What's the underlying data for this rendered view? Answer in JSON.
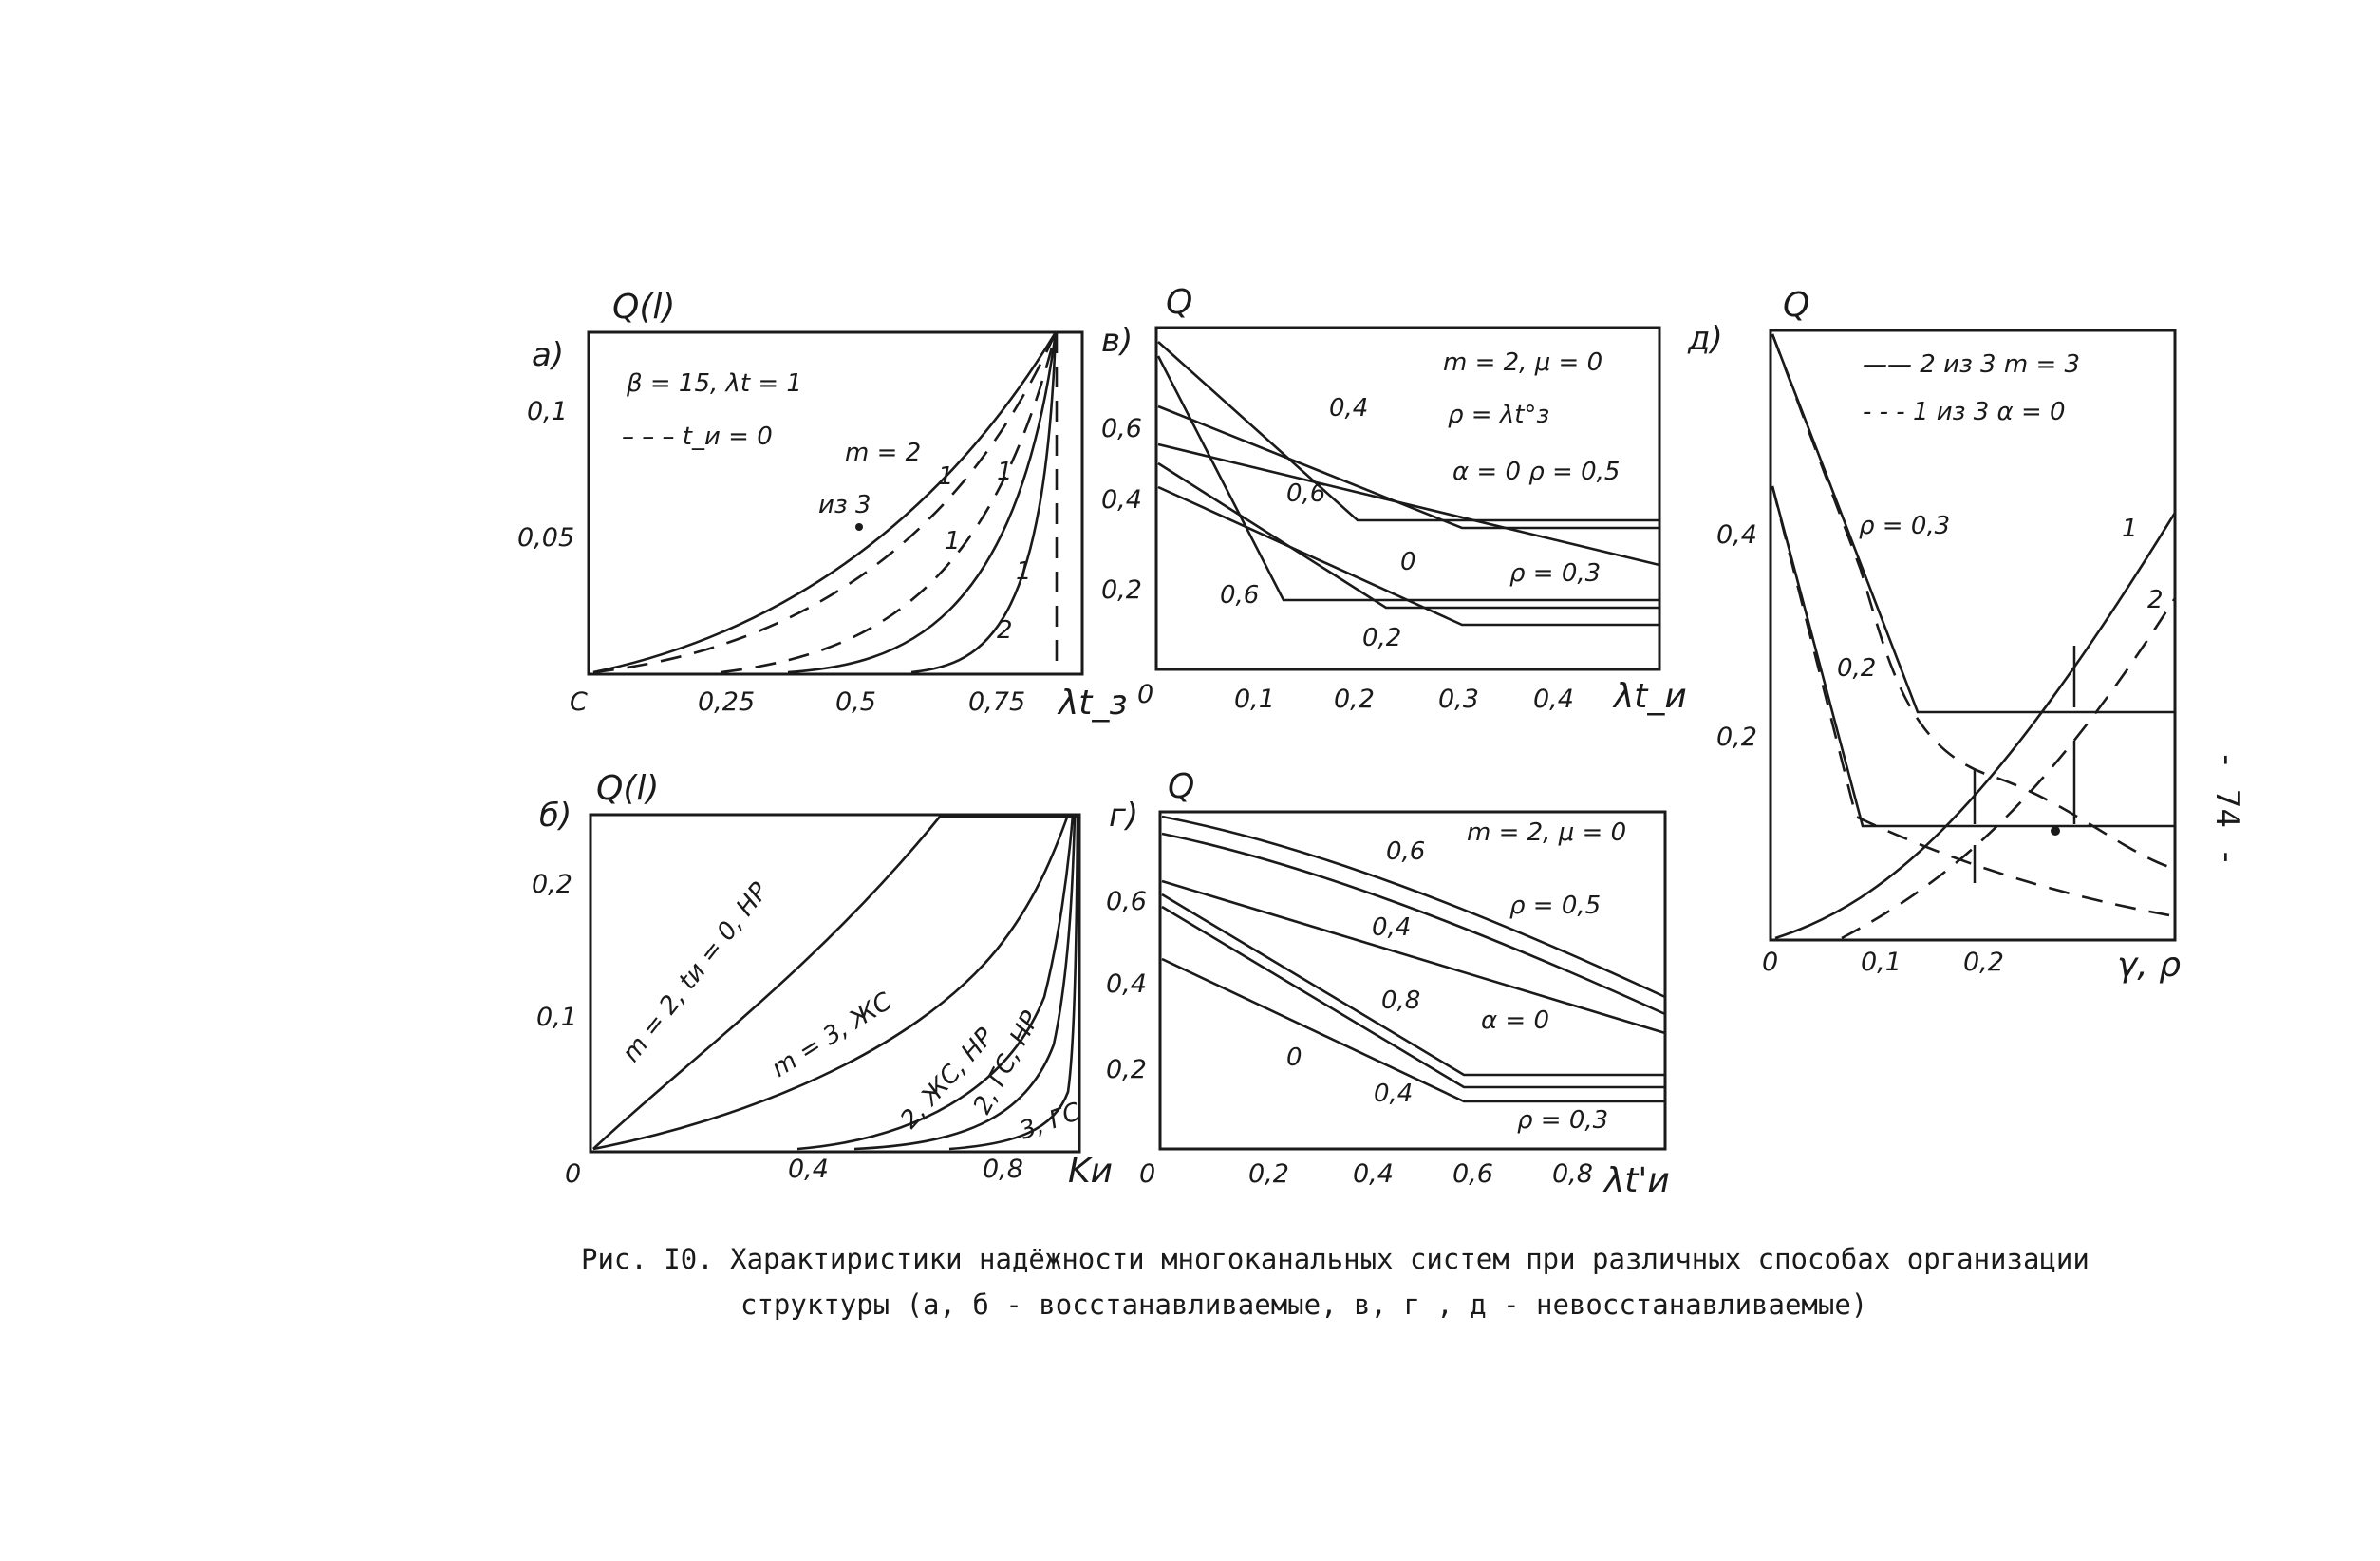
{
  "page_number": "- 74 -",
  "caption": {
    "line1": "Рис. I0.  Характиристики надёжности многоканальных систем при различных способах организации",
    "line2": "структуры (а, б - восстанавливаемые, в, г , д - невосстанавливаемые)"
  },
  "chart_data": [
    {
      "panel": "a)",
      "type": "line",
      "ylabel": "Q(l)",
      "xlabel": "λt_з",
      "x_ticks": [
        "C",
        "0,25",
        "0,5",
        "0,75"
      ],
      "y_ticks": [
        "0,1",
        "0,05"
      ],
      "annotations": [
        "β = 15,  λt = 1",
        "– – – t_и = 0",
        "m = 2",
        "из 3",
        "1",
        "1",
        "1",
        "1",
        "2"
      ],
      "series": [
        {
          "style": "solid",
          "points": [
            [
              0,
              0
            ],
            [
              0.25,
              0.022
            ],
            [
              0.5,
              0.052
            ],
            [
              0.75,
              0.098
            ],
            [
              0.88,
              0.125
            ]
          ]
        },
        {
          "style": "dashed",
          "points": [
            [
              0,
              0
            ],
            [
              0.25,
              0.016
            ],
            [
              0.5,
              0.04
            ],
            [
              0.75,
              0.086
            ],
            [
              0.88,
              0.125
            ]
          ]
        },
        {
          "style": "dashed",
          "points": [
            [
              0.15,
              0
            ],
            [
              0.5,
              0.022
            ],
            [
              0.75,
              0.062
            ],
            [
              0.88,
              0.125
            ]
          ]
        },
        {
          "style": "solid",
          "points": [
            [
              0.25,
              0
            ],
            [
              0.5,
              0.009
            ],
            [
              0.75,
              0.035
            ],
            [
              0.88,
              0.125
            ]
          ]
        },
        {
          "style": "solid",
          "points": [
            [
              0.55,
              0
            ],
            [
              0.75,
              0.008
            ],
            [
              0.85,
              0.03
            ],
            [
              0.88,
              0.125
            ]
          ]
        }
      ]
    },
    {
      "panel": "в)",
      "type": "line",
      "ylabel": "Q",
      "xlabel": "λt_и",
      "x_ticks": [
        "0",
        "0,1",
        "0,2",
        "0,3",
        "0,4"
      ],
      "y_ticks": [
        "0,6",
        "0,4",
        "0,2"
      ],
      "annotations": [
        "m = 2,  μ = 0",
        "ρ = λt°з",
        "α = 0   ρ = 0,5",
        "ρ = 0,3",
        "0,4",
        "0,6",
        "0",
        "0,6",
        "0,2"
      ],
      "series": [
        {
          "label": "0,4",
          "points": [
            [
              0,
              0.77
            ],
            [
              0.23,
              0.36
            ],
            [
              0.5,
              0.36
            ]
          ]
        },
        {
          "label": "0,6",
          "points": [
            [
              0,
              0.66
            ],
            [
              0.3,
              0.34
            ],
            [
              0.5,
              0.34
            ]
          ]
        },
        {
          "label": "ρ = 0,5",
          "points": [
            [
              0,
              0.6
            ],
            [
              0.5,
              0.25
            ]
          ]
        },
        {
          "label": "0",
          "points": [
            [
              0,
              0.5
            ],
            [
              0.23,
              0.15
            ],
            [
              0.5,
              0.15
            ]
          ]
        },
        {
          "label": "0,2",
          "points": [
            [
              0,
              0.44
            ],
            [
              0.3,
              0.12
            ],
            [
              0.5,
              0.12
            ]
          ]
        },
        {
          "label": "0,6",
          "points": [
            [
              0,
              0.7
            ],
            [
              0.13,
              0.18
            ],
            [
              0.5,
              0.18
            ]
          ]
        }
      ]
    },
    {
      "panel": "д)",
      "type": "line",
      "ylabel": "Q",
      "xlabel": "γ, ρ",
      "x_ticks": [
        "0",
        "0,1",
        "0,2"
      ],
      "y_ticks": [
        "0,4",
        "0,2"
      ],
      "annotations": [
        "—— 2 из 3     m = 3",
        "- - - 1 из 3     α = 0",
        "ρ = 0,3",
        "0,2",
        "1",
        "2"
      ],
      "series": [
        {
          "style": "solid",
          "label": "ρ = 0,3",
          "points": [
            [
              0,
              0.6
            ],
            [
              0.15,
              0.22
            ],
            [
              0.4,
              0.22
            ]
          ]
        },
        {
          "style": "dashed",
          "points": [
            [
              0,
              0.6
            ],
            [
              0.15,
              0.2
            ],
            [
              0.4,
              0.1
            ]
          ]
        },
        {
          "style": "solid",
          "label": "0,2",
          "points": [
            [
              0,
              0.45
            ],
            [
              0.1,
              0.11
            ],
            [
              0.4,
              0.11
            ]
          ]
        },
        {
          "style": "dashed",
          "points": [
            [
              0,
              0.45
            ],
            [
              0.1,
              0.09
            ],
            [
              0.4,
              0.02
            ]
          ]
        },
        {
          "style": "solid",
          "label": "1",
          "points": [
            [
              0,
              0
            ],
            [
              0.2,
              0.12
            ],
            [
              0.4,
              0.4
            ]
          ]
        },
        {
          "style": "dashed",
          "label": "2",
          "points": [
            [
              0.07,
              0
            ],
            [
              0.25,
              0.12
            ],
            [
              0.4,
              0.34
            ]
          ]
        }
      ]
    },
    {
      "panel": "б)",
      "type": "line",
      "ylabel": "Q(l)",
      "xlabel": "Kи",
      "x_ticks": [
        "0",
        "0,4",
        "0,8"
      ],
      "y_ticks": [
        "0,2",
        "0,1"
      ],
      "annotations": [
        "m = 2, tи = 0, НР",
        "m = 3, ЖС",
        "2, ЖС, НР",
        "2, ГС, НР",
        "3, ГС"
      ],
      "series": [
        {
          "label": "m = 2, tи = 0, НР",
          "points": [
            [
              0,
              0
            ],
            [
              0.3,
              0.1
            ],
            [
              0.62,
              0.26
            ],
            [
              0.9,
              0.26
            ]
          ]
        },
        {
          "label": "m = 3, ЖС",
          "points": [
            [
              0,
              0
            ],
            [
              0.5,
              0.06
            ],
            [
              0.8,
              0.17
            ],
            [
              0.9,
              0.26
            ]
          ]
        },
        {
          "label": "2, ЖС, НР",
          "points": [
            [
              0.4,
              0
            ],
            [
              0.7,
              0.04
            ],
            [
              0.86,
              0.15
            ],
            [
              0.9,
              0.26
            ]
          ]
        },
        {
          "label": "2, ГС, НР",
          "points": [
            [
              0.5,
              0
            ],
            [
              0.8,
              0.03
            ],
            [
              0.88,
              0.12
            ],
            [
              0.9,
              0.26
            ]
          ]
        },
        {
          "label": "3, ГС",
          "points": [
            [
              0.65,
              0
            ],
            [
              0.86,
              0.02
            ],
            [
              0.9,
              0.1
            ]
          ]
        }
      ]
    },
    {
      "panel": "г)",
      "type": "line",
      "ylabel": "Q",
      "xlabel": "λt'и",
      "x_ticks": [
        "0",
        "0,2",
        "0,4",
        "0,6",
        "0,8"
      ],
      "y_ticks": [
        "0,6",
        "0,4",
        "0,2"
      ],
      "annotations": [
        "m = 2,  μ = 0",
        "0,6",
        "0,4",
        "ρ = 0,5",
        "0,8",
        "α = 0",
        "0",
        "0,4",
        "ρ = 0,3"
      ],
      "series": [
        {
          "label": "0,6",
          "points": [
            [
              0,
              0.83
            ],
            [
              0.5,
              0.66
            ],
            [
              1,
              0.4
            ]
          ]
        },
        {
          "label": "0,4",
          "points": [
            [
              0,
              0.78
            ],
            [
              0.5,
              0.62
            ],
            [
              1,
              0.36
            ]
          ]
        },
        {
          "label": "ρ = 0,5",
          "points": [
            [
              0,
              0.65
            ],
            [
              1,
              0.27
            ]
          ]
        },
        {
          "label": "0,8",
          "points": [
            [
              0,
              0.62
            ],
            [
              0.6,
              0.19
            ],
            [
              1,
              0.19
            ]
          ]
        },
        {
          "label": "0",
          "points": [
            [
              0,
              0.58
            ],
            [
              0.6,
              0.15
            ],
            [
              1,
              0.15
            ]
          ]
        },
        {
          "label": "0,4",
          "points": [
            [
              0,
              0.45
            ],
            [
              0.6,
              0.12
            ],
            [
              1,
              0.12
            ]
          ]
        }
      ]
    }
  ]
}
